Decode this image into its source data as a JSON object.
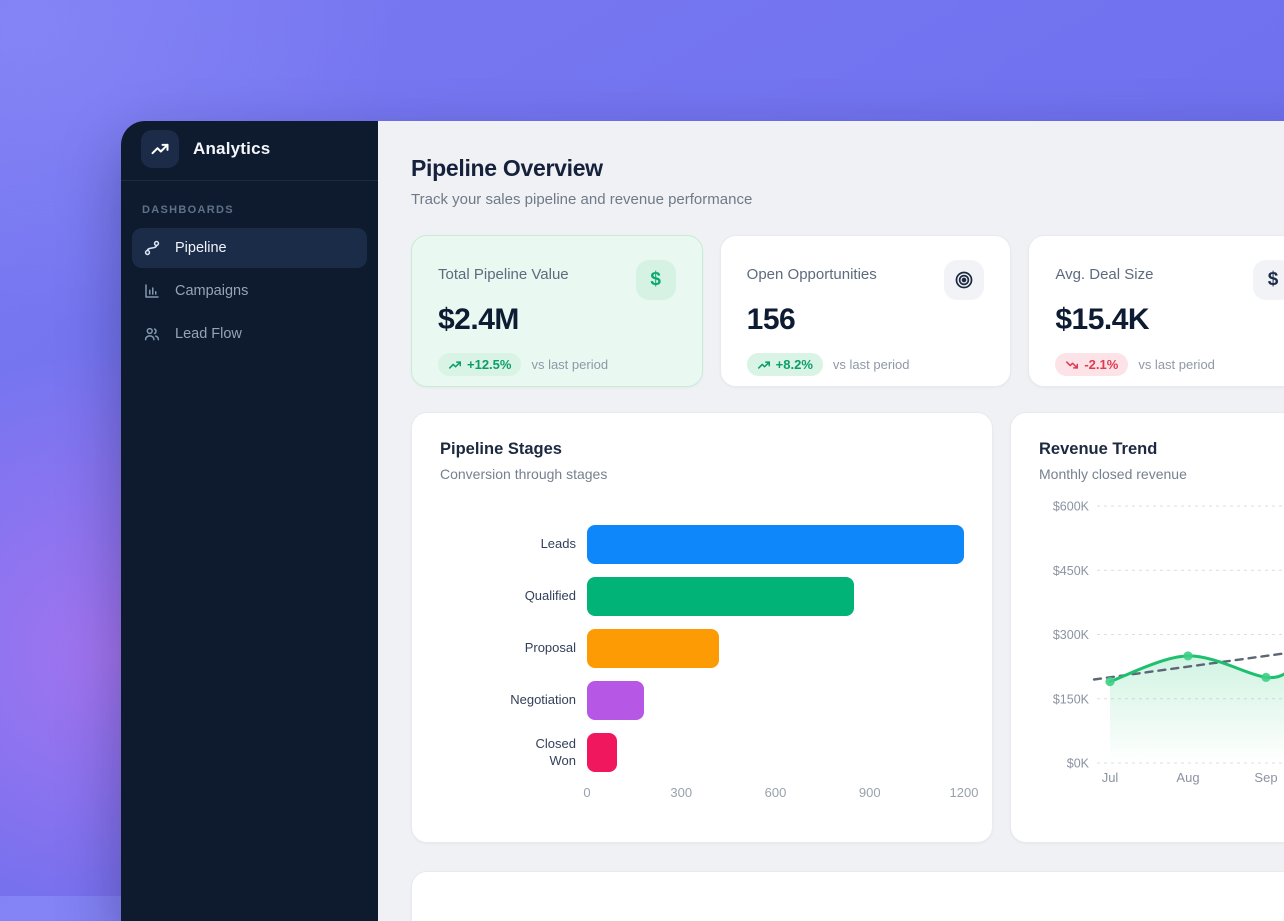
{
  "sidebar": {
    "app_name": "Analytics",
    "section_label": "DASHBOARDS",
    "items": [
      {
        "label": "Pipeline",
        "icon": "pipeline-icon",
        "active": true
      },
      {
        "label": "Campaigns",
        "icon": "bar-chart-icon",
        "active": false
      },
      {
        "label": "Lead Flow",
        "icon": "users-icon",
        "active": false
      }
    ]
  },
  "header": {
    "title": "Pipeline Overview",
    "subtitle": "Track your sales pipeline and revenue performance"
  },
  "kpis": [
    {
      "label": "Total Pipeline Value",
      "value": "$2.4M",
      "delta": "+12.5%",
      "delta_direction": "up",
      "note": "vs last period",
      "icon": "dollar-icon",
      "highlight": true
    },
    {
      "label": "Open Opportunities",
      "value": "156",
      "delta": "+8.2%",
      "delta_direction": "up",
      "note": "vs last period",
      "icon": "target-icon",
      "highlight": false
    },
    {
      "label": "Avg. Deal Size",
      "value": "$15.4K",
      "delta": "-2.1%",
      "delta_direction": "down",
      "note": "vs last period",
      "icon": "dollar-icon",
      "highlight": false
    }
  ],
  "colors": {
    "accent_green": "#0b9e6a",
    "accent_red": "#e03a52",
    "sidebar_bg": "#0e1b2e",
    "background_purple": "#6e70ee",
    "background_pink_glow": "#be76f0"
  },
  "chart_data": [
    {
      "type": "bar",
      "orientation": "horizontal",
      "title": "Pipeline Stages",
      "subtitle": "Conversion through stages",
      "categories": [
        "Leads",
        "Qualified",
        "Proposal",
        "Negotiation",
        "Closed Won"
      ],
      "values": [
        1200,
        850,
        420,
        180,
        95
      ],
      "bar_colors": [
        "#0d87fa",
        "#02b377",
        "#fc9b04",
        "#b757e5",
        "#f1175f"
      ],
      "xlim": [
        0,
        1200
      ],
      "x_ticks": [
        0,
        300,
        600,
        900,
        1200
      ],
      "grid": false
    },
    {
      "type": "line",
      "title": "Revenue Trend",
      "subtitle": "Monthly closed revenue",
      "x": [
        "Jul",
        "Aug",
        "Sep"
      ],
      "series": [
        {
          "name": "Monthly revenue",
          "values_k": [
            190,
            250,
            200
          ],
          "style": "solid green line with dots and area fill",
          "color": "#1dc06e"
        },
        {
          "name": "Trend",
          "values_k": [
            200,
            225,
            250
          ],
          "style": "dashed gray straight line",
          "color": "#5c6677"
        }
      ],
      "right_edge_exit_k": 222,
      "ylim_k": [
        0,
        600
      ],
      "y_ticks_k": [
        600,
        450,
        300,
        150,
        0
      ],
      "y_tick_labels": [
        "$600K",
        "$450K",
        "$300K",
        "$150K",
        "$0K"
      ],
      "grid": "dashed horizontal",
      "note": "chart clipped at right edge of screen; both lines continue rising"
    }
  ]
}
